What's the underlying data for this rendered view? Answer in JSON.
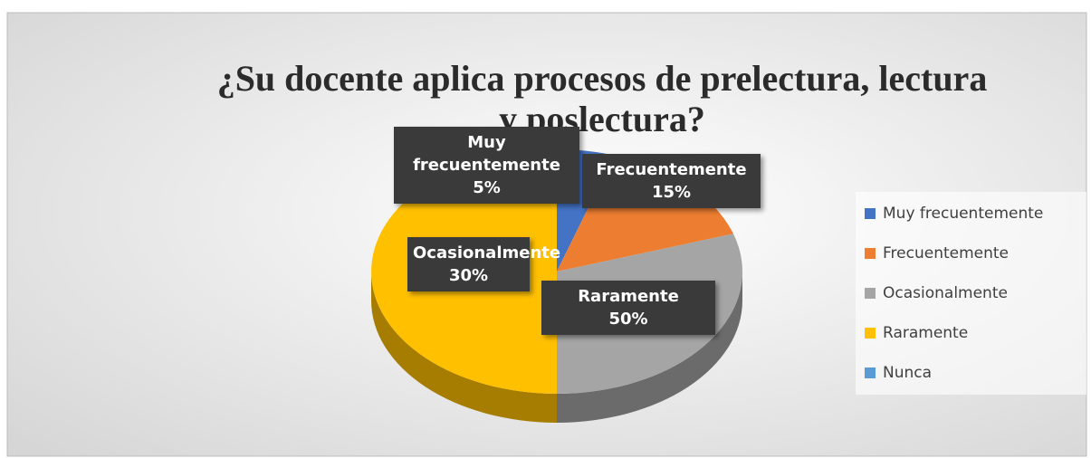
{
  "chart_data": {
    "type": "pie",
    "title": "¿Su docente aplica procesos de prelectura, lectura y poslectura?",
    "categories": [
      "Muy frecuentemente",
      "Frecuentemente",
      "Ocasionalmente",
      "Raramente",
      "Nunca"
    ],
    "values": [
      5,
      15,
      30,
      50,
      0
    ],
    "value_labels": [
      "5%",
      "15%",
      "30%",
      "50%",
      null
    ],
    "colors": [
      "#4472c4",
      "#ed7d31",
      "#a5a5a5",
      "#ffc000",
      "#5b9bd5"
    ],
    "legend": "right"
  }
}
